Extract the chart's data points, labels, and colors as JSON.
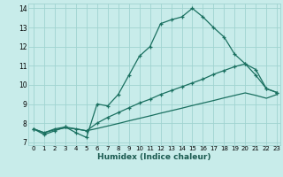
{
  "xlabel": "Humidex (Indice chaleur)",
  "bg_color": "#c8ecea",
  "grid_color": "#a0d4d0",
  "line_color": "#1a7060",
  "xlim": [
    -0.5,
    23.3
  ],
  "ylim": [
    6.85,
    14.25
  ],
  "yticks": [
    7,
    8,
    9,
    10,
    11,
    12,
    13,
    14
  ],
  "xticks": [
    0,
    1,
    2,
    3,
    4,
    5,
    6,
    7,
    8,
    9,
    10,
    11,
    12,
    13,
    14,
    15,
    16,
    17,
    18,
    19,
    20,
    21,
    22,
    23
  ],
  "line1_x": [
    0,
    1,
    2,
    3,
    4,
    5,
    6,
    7,
    8,
    9,
    10,
    11,
    12,
    13,
    14,
    15,
    16,
    17,
    18,
    19,
    20,
    21,
    22,
    23
  ],
  "line1_y": [
    7.7,
    7.4,
    7.6,
    7.8,
    7.5,
    7.25,
    9.0,
    8.9,
    9.5,
    10.5,
    11.5,
    12.0,
    13.2,
    13.4,
    13.55,
    14.0,
    13.55,
    13.0,
    12.5,
    11.6,
    11.1,
    10.8,
    9.8,
    9.6
  ],
  "line2_x": [
    0,
    1,
    2,
    3,
    4,
    5,
    6,
    7,
    8,
    9,
    10,
    11,
    12,
    13,
    14,
    15,
    16,
    17,
    18,
    19,
    20,
    21,
    22,
    23
  ],
  "line2_y": [
    7.7,
    7.5,
    7.7,
    7.8,
    7.7,
    7.6,
    8.0,
    8.3,
    8.55,
    8.8,
    9.05,
    9.25,
    9.5,
    9.7,
    9.9,
    10.1,
    10.3,
    10.55,
    10.75,
    10.95,
    11.1,
    10.5,
    9.8,
    9.6
  ],
  "line3_x": [
    0,
    1,
    2,
    3,
    4,
    5,
    6,
    7,
    8,
    9,
    10,
    11,
    12,
    13,
    14,
    15,
    16,
    17,
    18,
    19,
    20,
    21,
    22,
    23
  ],
  "line3_y": [
    7.7,
    7.5,
    7.65,
    7.75,
    7.7,
    7.6,
    7.72,
    7.85,
    7.98,
    8.12,
    8.25,
    8.38,
    8.52,
    8.65,
    8.78,
    8.92,
    9.05,
    9.18,
    9.32,
    9.45,
    9.58,
    9.45,
    9.3,
    9.5
  ]
}
